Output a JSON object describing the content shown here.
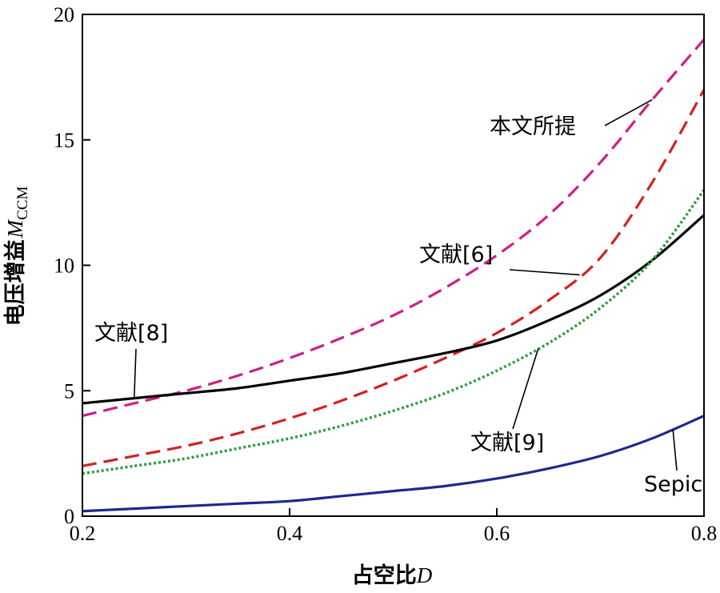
{
  "chart_data": {
    "type": "line",
    "xlabel": "占空比D",
    "ylabel": "电压增益M_CCM",
    "ylabel_main": "电压增益",
    "ylabel_var": "M",
    "ylabel_sub": "CCM",
    "xlabel_main": "占空比",
    "xlabel_var": "D",
    "xlim": [
      0.2,
      0.8
    ],
    "ylim": [
      0,
      20
    ],
    "xticks": [
      "0.2",
      "0.4",
      "0.6",
      "0.8"
    ],
    "yticks": [
      "0",
      "5",
      "10",
      "15",
      "20"
    ],
    "grid": false,
    "series": [
      {
        "name": "本文所提",
        "color": "#cc1f86",
        "style": "dashed",
        "x": [
          0.2,
          0.25,
          0.3,
          0.35,
          0.4,
          0.45,
          0.5,
          0.55,
          0.6,
          0.65,
          0.7,
          0.75,
          0.8
        ],
        "y": [
          4.0,
          4.5,
          5.0,
          5.6,
          6.3,
          7.1,
          8.0,
          9.1,
          10.4,
          12.0,
          14.1,
          16.6,
          19.0
        ]
      },
      {
        "name": "文献[6]",
        "color": "#d42020",
        "style": "dashed",
        "x": [
          0.2,
          0.25,
          0.3,
          0.35,
          0.4,
          0.45,
          0.5,
          0.55,
          0.6,
          0.65,
          0.7,
          0.75,
          0.8
        ],
        "y": [
          2.0,
          2.4,
          2.8,
          3.3,
          3.9,
          4.6,
          5.4,
          6.3,
          7.3,
          8.6,
          10.3,
          13.3,
          17.0
        ]
      },
      {
        "name": "文献[8]",
        "color": "#000000",
        "style": "solid",
        "x": [
          0.2,
          0.25,
          0.3,
          0.35,
          0.4,
          0.45,
          0.5,
          0.55,
          0.6,
          0.65,
          0.7,
          0.75,
          0.8
        ],
        "y": [
          4.5,
          4.7,
          4.9,
          5.1,
          5.4,
          5.7,
          6.1,
          6.5,
          7.0,
          7.8,
          8.8,
          10.2,
          12.0
        ]
      },
      {
        "name": "文献[9]",
        "color": "#2e9e3a",
        "style": "dotted",
        "x": [
          0.2,
          0.25,
          0.3,
          0.35,
          0.4,
          0.45,
          0.5,
          0.55,
          0.6,
          0.65,
          0.7,
          0.75,
          0.8
        ],
        "y": [
          1.7,
          2.0,
          2.3,
          2.7,
          3.1,
          3.6,
          4.2,
          4.9,
          5.8,
          6.9,
          8.3,
          10.2,
          13.0
        ]
      },
      {
        "name": "Sepic",
        "color": "#1b2a8a",
        "style": "solid",
        "x": [
          0.2,
          0.25,
          0.3,
          0.35,
          0.4,
          0.45,
          0.5,
          0.55,
          0.6,
          0.65,
          0.7,
          0.75,
          0.8
        ],
        "y": [
          0.2,
          0.3,
          0.4,
          0.5,
          0.6,
          0.8,
          1.0,
          1.2,
          1.5,
          1.9,
          2.4,
          3.1,
          4.0
        ]
      }
    ],
    "annotations": [
      {
        "text": "本文所提",
        "series": "本文所提"
      },
      {
        "text": "文献[6]",
        "series": "文献[6]"
      },
      {
        "text": "文献[8]",
        "series": "文献[8]"
      },
      {
        "text": "文献[9]",
        "series": "文献[9]"
      },
      {
        "text": "Sepic",
        "series": "Sepic"
      }
    ]
  }
}
